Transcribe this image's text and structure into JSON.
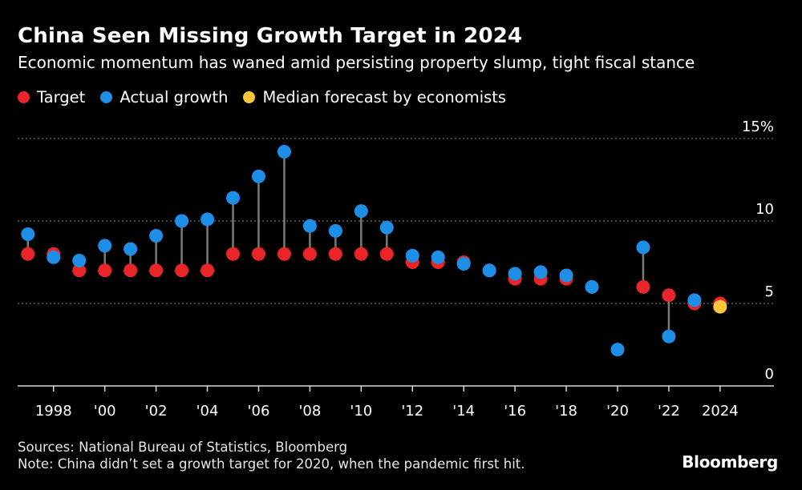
{
  "title": "China Seen Missing Growth Target in 2024",
  "subtitle": "Economic momentum has waned amid persisting property slump, tight fiscal stance",
  "legend": [
    {
      "label": "Target",
      "color": "#e8262a"
    },
    {
      "label": "Actual growth",
      "color": "#1e8fe6"
    },
    {
      "label": "Median forecast by economists",
      "color": "#fdc53a"
    }
  ],
  "footer": {
    "sources": "Sources: National Bureau of Statistics, Bloomberg",
    "note": "Note: China didn’t set a growth target for 2020, when the pandemic first hit."
  },
  "brand": "Bloomberg",
  "chart_data": {
    "type": "scatter",
    "title": "China Seen Missing Growth Target in 2024",
    "xlabel": "",
    "ylabel": "",
    "x": [
      1997,
      1998,
      1999,
      2000,
      2001,
      2002,
      2003,
      2004,
      2005,
      2006,
      2007,
      2008,
      2009,
      2010,
      2011,
      2012,
      2013,
      2014,
      2015,
      2016,
      2017,
      2018,
      2019,
      2020,
      2021,
      2022,
      2023,
      2024
    ],
    "series": [
      {
        "name": "Target",
        "color": "#e8262a",
        "values": [
          8,
          8,
          7,
          7,
          7,
          7,
          7,
          7,
          8,
          8,
          8,
          8,
          8,
          8,
          8,
          7.5,
          7.5,
          7.5,
          7,
          6.5,
          6.5,
          6.5,
          6,
          null,
          6,
          5.5,
          5,
          5
        ]
      },
      {
        "name": "Actual growth",
        "color": "#1e8fe6",
        "values": [
          9.2,
          7.8,
          7.6,
          8.5,
          8.3,
          9.1,
          10.0,
          10.1,
          11.4,
          12.7,
          14.2,
          9.7,
          9.4,
          10.6,
          9.6,
          7.9,
          7.8,
          7.4,
          7.0,
          6.8,
          6.9,
          6.7,
          6.0,
          2.2,
          8.4,
          3.0,
          5.2,
          null
        ]
      },
      {
        "name": "Median forecast by economists",
        "color": "#fdc53a",
        "values": [
          null,
          null,
          null,
          null,
          null,
          null,
          null,
          null,
          null,
          null,
          null,
          null,
          null,
          null,
          null,
          null,
          null,
          null,
          null,
          null,
          null,
          null,
          null,
          null,
          null,
          null,
          null,
          4.8
        ]
      }
    ],
    "y_ticks": [
      {
        "value": 15,
        "label": "15%"
      },
      {
        "value": 10,
        "label": "10"
      },
      {
        "value": 5,
        "label": "5"
      },
      {
        "value": 0,
        "label": "0"
      }
    ],
    "x_ticks": [
      {
        "value": 1998,
        "label": "1998"
      },
      {
        "value": 2000,
        "label": "'00"
      },
      {
        "value": 2002,
        "label": "'02"
      },
      {
        "value": 2004,
        "label": "'04"
      },
      {
        "value": 2006,
        "label": "'06"
      },
      {
        "value": 2008,
        "label": "'08"
      },
      {
        "value": 2010,
        "label": "'10"
      },
      {
        "value": 2012,
        "label": "'12"
      },
      {
        "value": 2014,
        "label": "'14"
      },
      {
        "value": 2016,
        "label": "'16"
      },
      {
        "value": 2018,
        "label": "'18"
      },
      {
        "value": 2020,
        "label": "'20"
      },
      {
        "value": 2022,
        "label": "'22"
      },
      {
        "value": 2024,
        "label": "2024"
      }
    ],
    "ylim": [
      0,
      15
    ],
    "xlim": [
      1996.6,
      2026.1
    ],
    "grid": true
  }
}
